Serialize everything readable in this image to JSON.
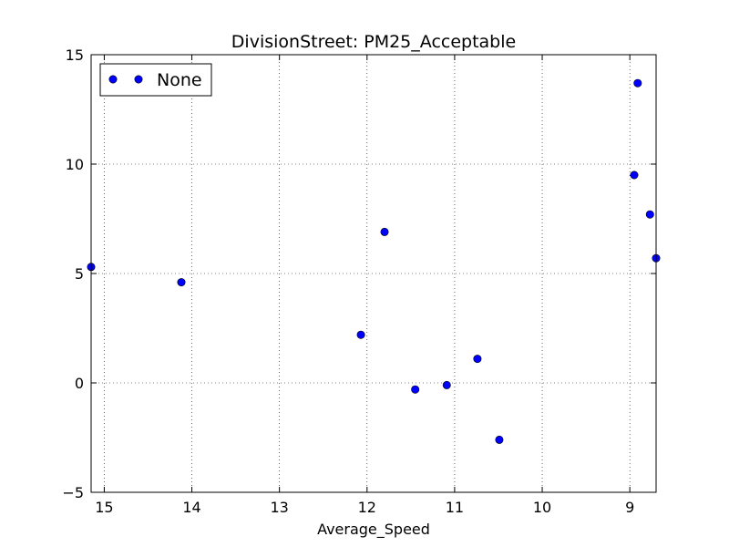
{
  "chart_data": {
    "type": "scatter",
    "title": "DivisionStreet: PM25_Acceptable",
    "xlabel": "Average_Speed",
    "ylabel": "",
    "xlim": [
      15.15,
      8.7
    ],
    "ylim": [
      -5,
      15
    ],
    "x_inverted": true,
    "grid": true,
    "legend_placement": "top-left",
    "x_ticks": [
      15,
      14,
      13,
      12,
      11,
      10,
      9
    ],
    "x_tick_labels": [
      "15",
      "14",
      "13",
      "12",
      "11",
      "10",
      "9"
    ],
    "y_ticks": [
      -5,
      0,
      5,
      10,
      15
    ],
    "y_tick_labels": [
      "−5",
      "0",
      "5",
      "10",
      "15"
    ],
    "series": [
      {
        "name": "None",
        "color": "#0000ff",
        "marker": "circle",
        "points": [
          {
            "x": 15.15,
            "y": 5.3
          },
          {
            "x": 14.12,
            "y": 4.6
          },
          {
            "x": 12.07,
            "y": 2.2
          },
          {
            "x": 11.8,
            "y": 6.9
          },
          {
            "x": 11.45,
            "y": -0.3
          },
          {
            "x": 11.09,
            "y": -0.1
          },
          {
            "x": 10.74,
            "y": 1.1
          },
          {
            "x": 10.49,
            "y": -2.6
          },
          {
            "x": 8.95,
            "y": 9.5
          },
          {
            "x": 8.91,
            "y": 13.7
          },
          {
            "x": 8.77,
            "y": 7.7
          },
          {
            "x": 8.7,
            "y": 5.7
          }
        ]
      }
    ]
  }
}
